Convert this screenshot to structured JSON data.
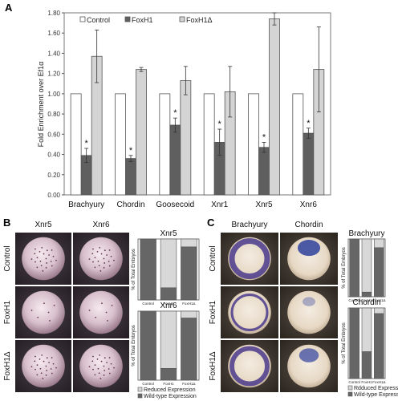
{
  "panels": {
    "a": {
      "letter": "A"
    },
    "b": {
      "letter": "B"
    },
    "c": {
      "letter": "C"
    }
  },
  "chart_data": [
    {
      "type": "bar",
      "title": "",
      "xlabel": "",
      "ylabel": "Fold Enrichment over Ef1α",
      "ylim": [
        0,
        1.8
      ],
      "yticks": [
        "0.00",
        "0.20",
        "0.40",
        "0.60",
        "0.80",
        "1.00",
        "1.20",
        "1.40",
        "1.60",
        "1.80"
      ],
      "categories": [
        "Brachyury",
        "Chordin",
        "Goosecoid",
        "Xnr1",
        "Xnr5",
        "Xnr6"
      ],
      "series": [
        {
          "name": "Control",
          "color": "#ffffff",
          "values": [
            1.0,
            1.0,
            1.0,
            1.0,
            1.0,
            1.0
          ],
          "err": [
            0,
            0,
            0,
            0,
            0,
            0
          ]
        },
        {
          "name": "FoxH1",
          "color": "#5f5f5f",
          "values": [
            0.39,
            0.36,
            0.69,
            0.52,
            0.47,
            0.61
          ],
          "err": [
            0.07,
            0.03,
            0.07,
            0.13,
            0.05,
            0.05
          ]
        },
        {
          "name": "FoxH1Δ",
          "color": "#d4d4d4",
          "values": [
            1.37,
            1.24,
            1.13,
            1.02,
            1.74,
            1.24
          ],
          "err": [
            0.26,
            0.02,
            0.14,
            0.25,
            0.06,
            0.42
          ]
        }
      ],
      "significance_marker": "*",
      "legend": "top-left",
      "grid": false
    },
    {
      "type": "bar",
      "title": "Xnr5",
      "ylabel": "% of Total Embryos",
      "categories": [
        "Control",
        "FoxH1",
        "FoxH1Δ"
      ],
      "stacked": true,
      "series": [
        {
          "name": "Wild-type Expression",
          "color": "#666666",
          "values": [
            100,
            20,
            87
          ]
        },
        {
          "name": "Reduced Expression",
          "color": "#d8d8d8",
          "values": [
            0,
            80,
            13
          ]
        }
      ]
    },
    {
      "type": "bar",
      "title": "Xnr6",
      "ylabel": "% of Total Embryos",
      "categories": [
        "Control",
        "FoxH1",
        "FoxH1Δ"
      ],
      "stacked": true,
      "series": [
        {
          "name": "Wild-type Expression",
          "color": "#666666",
          "values": [
            100,
            17,
            90
          ]
        },
        {
          "name": "Reduced Expression",
          "color": "#d8d8d8",
          "values": [
            0,
            83,
            10
          ]
        }
      ],
      "legend": "bottom"
    },
    {
      "type": "bar",
      "title": "Brachyury",
      "ylabel": "% of Total Embryos",
      "categories": [
        "Control",
        "FoxH1",
        "FoxH1Δ"
      ],
      "stacked": true,
      "series": [
        {
          "name": "Wild-type Expression",
          "color": "#666666",
          "values": [
            100,
            8,
            85
          ]
        },
        {
          "name": "Reduced Expression",
          "color": "#d8d8d8",
          "values": [
            0,
            92,
            15
          ]
        }
      ]
    },
    {
      "type": "bar",
      "title": "Chordin",
      "ylabel": "% of Total Embryos",
      "categories": [
        "Control",
        "FoxH1",
        "FoxH1Δ"
      ],
      "stacked": true,
      "series": [
        {
          "name": "Wild-type Expression",
          "color": "#666666",
          "values": [
            100,
            38,
            92
          ]
        },
        {
          "name": "Reduced Expression",
          "color": "#d8d8d8",
          "values": [
            0,
            62,
            8
          ]
        }
      ],
      "legend": "bottom"
    }
  ],
  "legend_small": {
    "reduced": "Reduced Expression",
    "wildtype": "Wild-type Expression",
    "reduced_c": "Rdduced Expression"
  },
  "panel_b": {
    "columns": [
      "Xnr5",
      "Xnr6"
    ],
    "rows": [
      "Control",
      "FoxH1",
      "FoxH1Δ"
    ]
  },
  "panel_c": {
    "columns": [
      "Brachyury",
      "Chordin"
    ],
    "rows": [
      "Control",
      "FoxH1",
      "FoxH1Δ"
    ]
  }
}
